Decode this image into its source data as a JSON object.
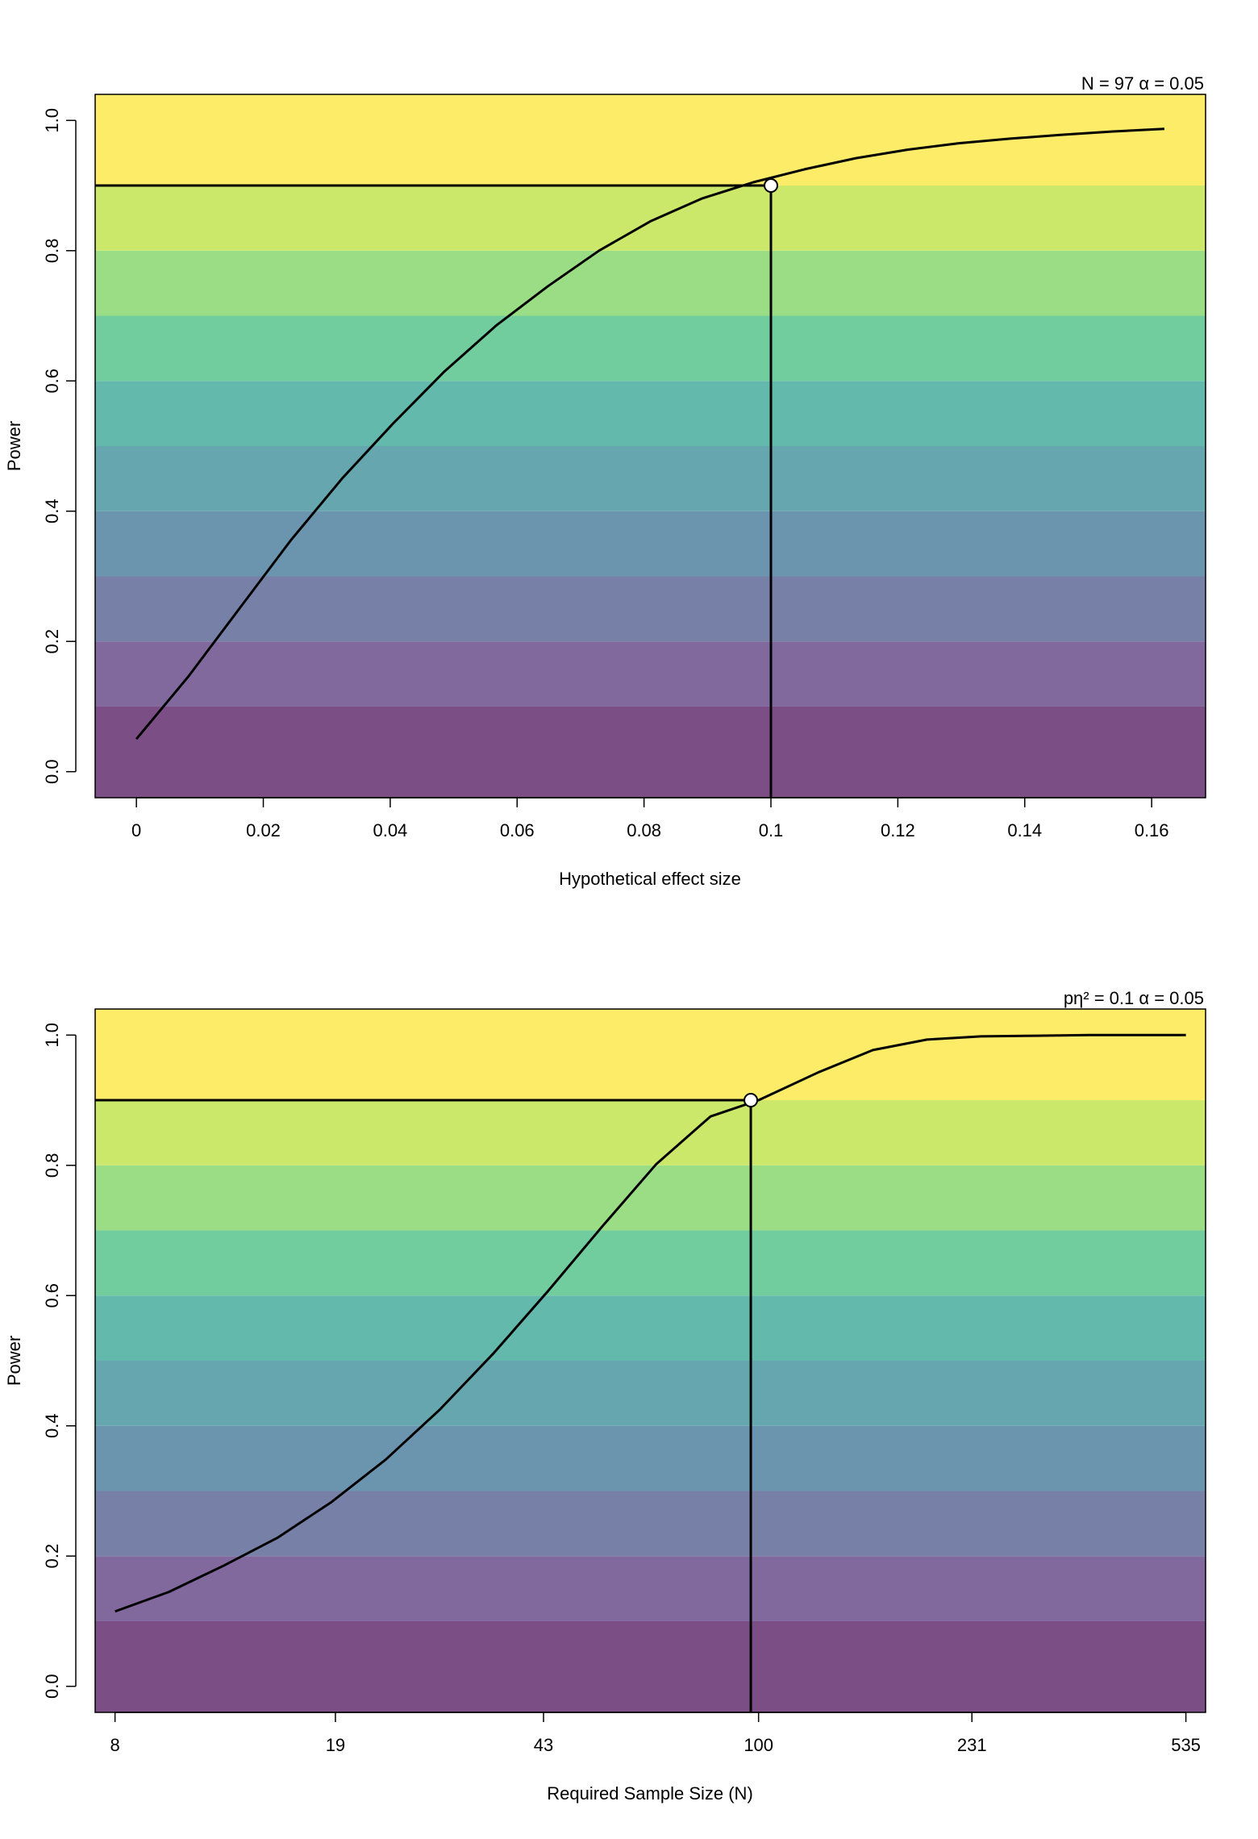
{
  "chart_data": [
    {
      "type": "line",
      "title": "",
      "corner_label": "N = 97   α = 0.05",
      "xlabel": "Hypothetical effect size",
      "ylabel": "Power",
      "x_scale": "linear",
      "xlim": [
        -0.0065,
        0.1685
      ],
      "ylim": [
        -0.04,
        1.04
      ],
      "x_ticks": [
        0,
        0.02,
        0.04,
        0.06,
        0.08,
        0.1,
        0.12,
        0.14,
        0.16
      ],
      "x_tick_labels": [
        "0",
        "0.02",
        "0.04",
        "0.06",
        "0.08",
        "0.1",
        "0.12",
        "0.14",
        "0.16"
      ],
      "y_ticks": [
        0,
        0.2,
        0.4,
        0.6,
        0.8,
        1
      ],
      "y_tick_labels": [
        "0.0",
        "0.2",
        "0.4",
        "0.6",
        "0.8",
        "1.0"
      ],
      "bands": {
        "edges": [
          -0.04,
          0.1,
          0.2,
          0.3,
          0.4,
          0.5,
          0.6,
          0.7,
          0.8,
          0.9,
          1.04
        ],
        "colors": [
          "#7b4f86",
          "#81699e",
          "#7781a8",
          "#6b94ae",
          "#66a6ae",
          "#62b9ac",
          "#72cd9e",
          "#9bdd85",
          "#cce86a",
          "#fcec68"
        ]
      },
      "grid": false,
      "series": [
        {
          "x": [
            0,
            0.0081,
            0.0162,
            0.0243,
            0.0324,
            0.0405,
            0.0486,
            0.0567,
            0.0648,
            0.0729,
            0.081,
            0.0891,
            0.0972,
            0.1053,
            0.1134,
            0.1215,
            0.1296,
            0.1377,
            0.1458,
            0.1539,
            0.162
          ],
          "y": [
            0.05,
            0.145,
            0.25,
            0.355,
            0.45,
            0.535,
            0.615,
            0.685,
            0.745,
            0.8,
            0.845,
            0.88,
            0.905,
            0.925,
            0.942,
            0.955,
            0.965,
            0.972,
            0.978,
            0.983,
            0.987
          ],
          "color": "#000000"
        }
      ],
      "marker": {
        "x": 0.1,
        "y": 0.9,
        "shape": "open-circle"
      },
      "reference_lines": {
        "vertical_x": 0.1,
        "horizontal_y": 0.9
      }
    },
    {
      "type": "line",
      "title": "",
      "corner_label": "pη² = 0.1   α = 0.05",
      "xlabel": "Required Sample Size (N)",
      "ylabel": "Power",
      "x_scale": "log",
      "xlim": [
        7.4,
        578
      ],
      "ylim": [
        -0.04,
        1.04
      ],
      "x_ticks": [
        8,
        19,
        43,
        100,
        231,
        535
      ],
      "x_tick_labels": [
        "8",
        "19",
        "43",
        "100",
        "231",
        "535"
      ],
      "y_ticks": [
        0,
        0.2,
        0.4,
        0.6,
        0.8,
        1
      ],
      "y_tick_labels": [
        "0.0",
        "0.2",
        "0.4",
        "0.6",
        "0.8",
        "1.0"
      ],
      "bands": {
        "edges": [
          -0.04,
          0.1,
          0.2,
          0.3,
          0.4,
          0.5,
          0.6,
          0.7,
          0.8,
          0.9,
          1.04
        ],
        "colors": [
          "#7b4f86",
          "#81699e",
          "#7781a8",
          "#6b94ae",
          "#66a6ae",
          "#62b9ac",
          "#72cd9e",
          "#9bdd85",
          "#cce86a",
          "#fcec68"
        ]
      },
      "grid": false,
      "series": [
        {
          "x": [
            8,
            9.89,
            12.24,
            15.13,
            18.71,
            23.14,
            28.62,
            35.39,
            43.77,
            54.13,
            66.95,
            82.79,
            100,
            126.6,
            156.6,
            193.6,
            239.5,
            296.2,
            366.3,
            453,
            535
          ],
          "y": [
            0.115,
            0.145,
            0.185,
            0.228,
            0.283,
            0.348,
            0.425,
            0.512,
            0.607,
            0.706,
            0.802,
            0.875,
            0.9,
            0.943,
            0.977,
            0.993,
            0.998,
            0.999,
            1.0,
            1.0,
            1.0
          ],
          "color": "#000000"
        }
      ],
      "marker": {
        "x": 97,
        "y": 0.9,
        "shape": "open-circle"
      },
      "reference_lines": {
        "vertical_x": 97,
        "horizontal_y": 0.9
      }
    }
  ]
}
